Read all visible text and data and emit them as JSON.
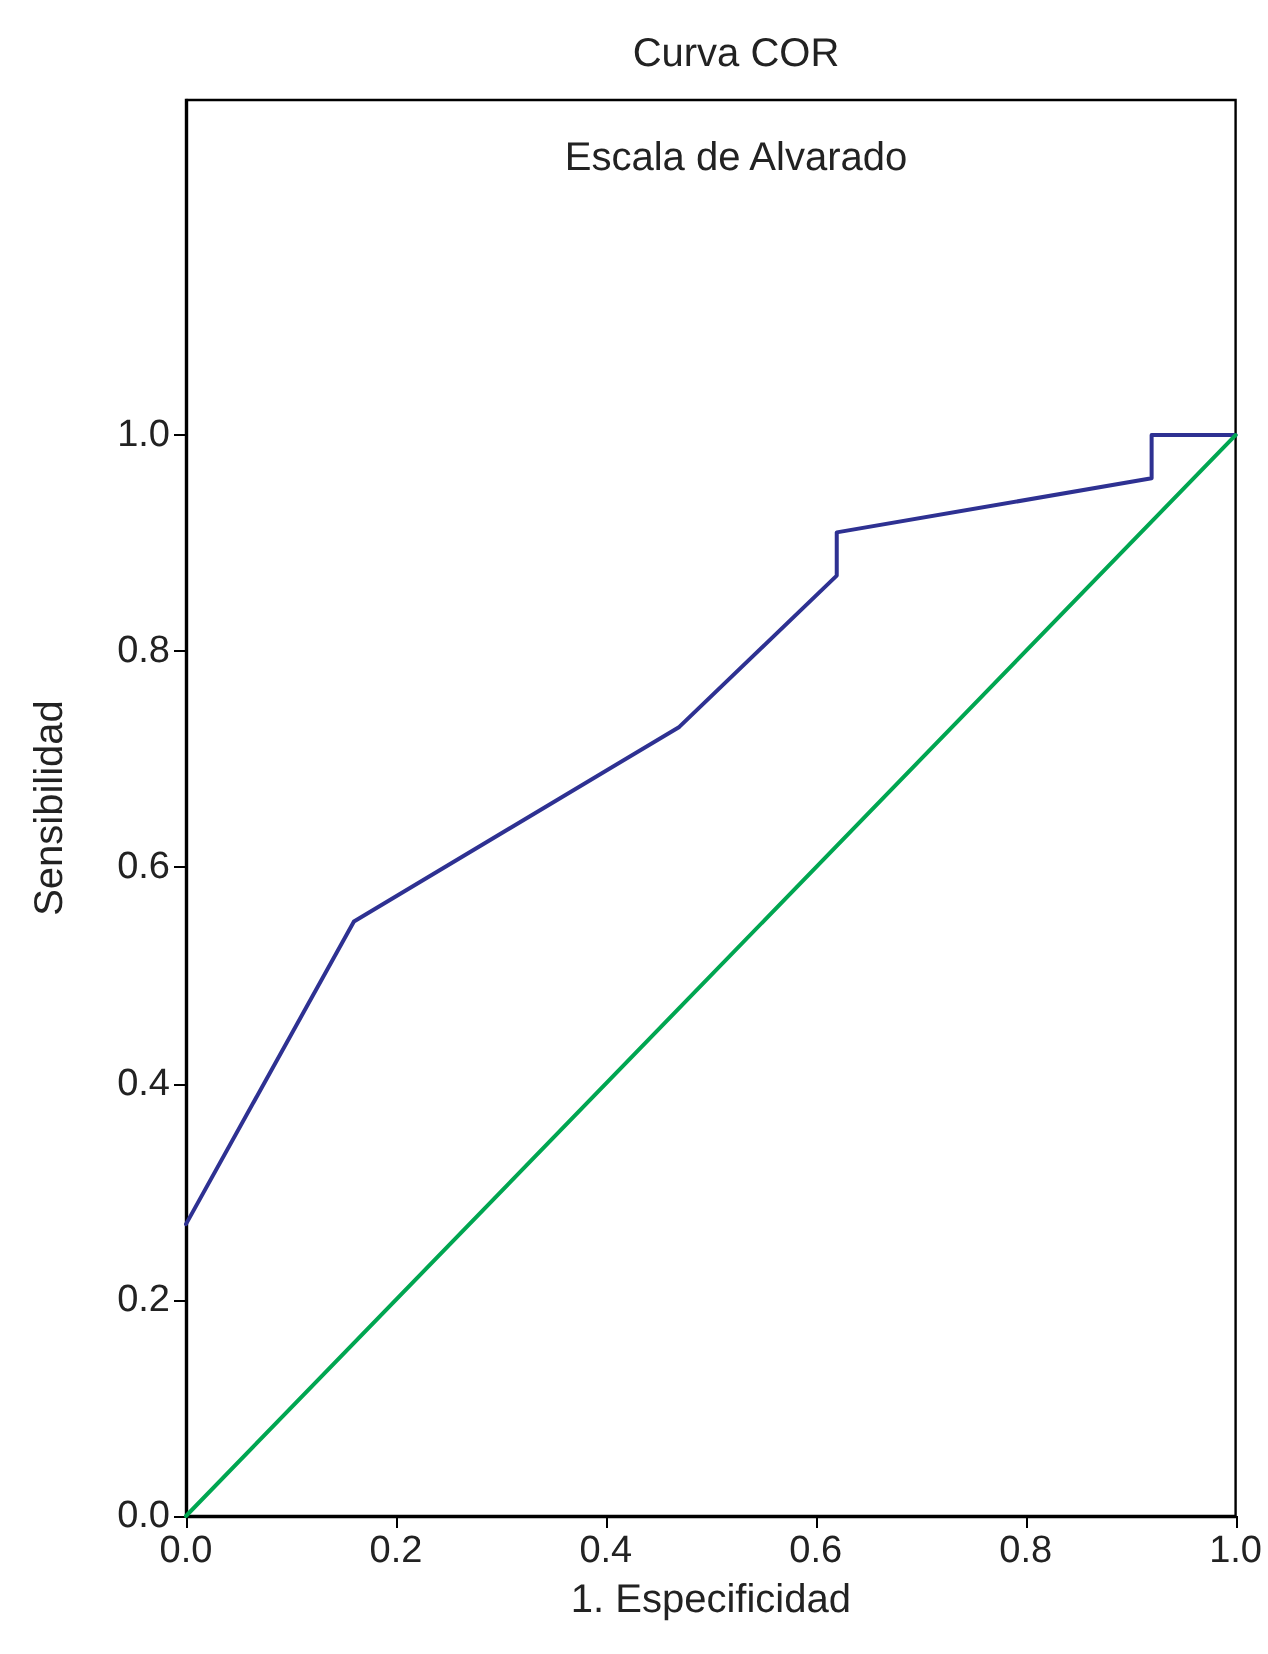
{
  "chart_data": {
    "type": "line",
    "title": "Curva COR",
    "subtitle": "Escala de Alvarado",
    "xlabel": "1. Especificidad",
    "ylabel": "Sensibilidad",
    "series": [
      {
        "color": "#2e3192",
        "x": [
          0,
          0.16,
          0.47,
          0.62,
          0.62,
          0.92,
          0.92,
          1.0
        ],
        "values": [
          0.27,
          0.55,
          0.73,
          0.87,
          0.91,
          0.96,
          1.0,
          1.0
        ]
      },
      {
        "color": "#00a651",
        "x": [
          0,
          1.0
        ],
        "values": [
          0,
          1.0
        ]
      }
    ],
    "xlim": [
      0,
      1.0
    ],
    "xticks": [
      {
        "value": 0,
        "label": "0.0"
      },
      0.2,
      0.4,
      0.6,
      0.8,
      {
        "value": 1.0,
        "label": "1.0"
      }
    ],
    "ylim": [
      0,
      1.31
    ],
    "yticks": [
      {
        "value": 0,
        "label": "0.0"
      },
      0.2,
      0.4,
      0.6,
      0.8,
      {
        "value": 1.0,
        "label": "1.0"
      }
    ],
    "grid": false,
    "marker": "none",
    "line_style": "solid"
  }
}
